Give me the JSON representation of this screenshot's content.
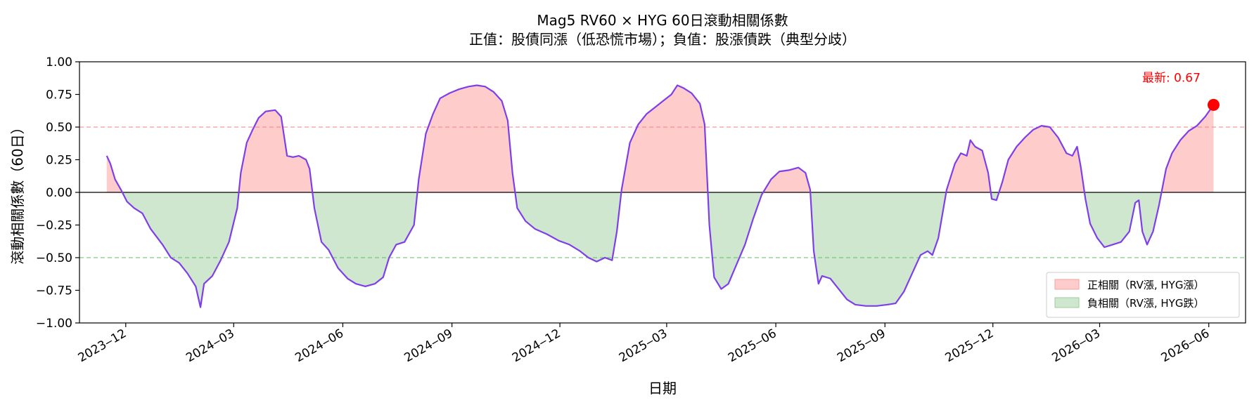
{
  "chart_data": {
    "type": "area",
    "title_line1": "Mag5 RV60 × HYG 60日滾動相關係數",
    "title_line2": "正值：股債同漲（低恐慌市場）；負值：股漲債跌（典型分歧）",
    "xlabel": "日期",
    "ylabel": "滾動相關係數（60日）",
    "ylim": [
      -1.0,
      1.0
    ],
    "y_ticks": [
      -1.0,
      -0.75,
      -0.5,
      -0.25,
      0.0,
      0.25,
      0.5,
      0.75,
      1.0
    ],
    "y_tick_labels": [
      "−1.00",
      "−0.75",
      "−0.50",
      "−0.25",
      "0.00",
      "0.25",
      "0.50",
      "0.75",
      "1.00"
    ],
    "xlim": [
      "2023-10-23",
      "2026-07-02"
    ],
    "x_ticks": [
      "2023-12-01",
      "2024-03-01",
      "2024-06-01",
      "2024-09-01",
      "2024-12-01",
      "2025-03-01",
      "2025-06-01",
      "2025-09-01",
      "2025-12-01",
      "2026-03-01",
      "2026-06-01"
    ],
    "x_tick_labels": [
      "2023‒12",
      "2024‒03",
      "2024‒06",
      "2024‒09",
      "2024‒12",
      "2025‒03",
      "2025‒06",
      "2025‒09",
      "2025‒12",
      "2026‒03",
      "2026‒06"
    ],
    "reference_lines": [
      {
        "y": 0.5,
        "color": "#f08080",
        "style": "dashed"
      },
      {
        "y": -0.5,
        "color": "#66bb66",
        "style": "dashed"
      },
      {
        "y": 0.0,
        "color": "#000000",
        "style": "solid"
      }
    ],
    "legend": {
      "placement": "lower-right",
      "entries": [
        {
          "label": "正相關（RV漲, HYG漲）",
          "color": "#ffcccc",
          "edge": "#f4a0a0"
        },
        {
          "label": "負相關（RV漲, HYG跌）",
          "color": "#cfe6cf",
          "edge": "#9ccc9c"
        }
      ]
    },
    "series": [
      {
        "color": "#7f3fe8",
        "positive_fill": "#ffcccc",
        "negative_fill": "#cfe6cf",
        "points": [
          [
            "2023-11-15",
            0.28
          ],
          [
            "2023-11-18",
            0.22
          ],
          [
            "2023-11-22",
            0.1
          ],
          [
            "2023-11-27",
            0.02
          ],
          [
            "2023-12-02",
            -0.07
          ],
          [
            "2023-12-08",
            -0.12
          ],
          [
            "2023-12-15",
            -0.16
          ],
          [
            "2023-12-22",
            -0.28
          ],
          [
            "2024-01-01",
            -0.4
          ],
          [
            "2024-01-08",
            -0.5
          ],
          [
            "2024-01-15",
            -0.54
          ],
          [
            "2024-01-22",
            -0.62
          ],
          [
            "2024-01-29",
            -0.72
          ],
          [
            "2024-02-02",
            -0.88
          ],
          [
            "2024-02-05",
            -0.7
          ],
          [
            "2024-02-12",
            -0.64
          ],
          [
            "2024-02-19",
            -0.52
          ],
          [
            "2024-02-26",
            -0.38
          ],
          [
            "2024-03-04",
            -0.12
          ],
          [
            "2024-03-07",
            0.15
          ],
          [
            "2024-03-12",
            0.38
          ],
          [
            "2024-03-17",
            0.48
          ],
          [
            "2024-03-22",
            0.57
          ],
          [
            "2024-03-28",
            0.62
          ],
          [
            "2024-04-05",
            0.63
          ],
          [
            "2024-04-10",
            0.58
          ],
          [
            "2024-04-15",
            0.28
          ],
          [
            "2024-04-20",
            0.27
          ],
          [
            "2024-04-25",
            0.28
          ],
          [
            "2024-05-01",
            0.25
          ],
          [
            "2024-05-04",
            0.18
          ],
          [
            "2024-05-08",
            -0.12
          ],
          [
            "2024-05-14",
            -0.38
          ],
          [
            "2024-05-20",
            -0.44
          ],
          [
            "2024-05-28",
            -0.58
          ],
          [
            "2024-06-05",
            -0.66
          ],
          [
            "2024-06-12",
            -0.7
          ],
          [
            "2024-06-20",
            -0.72
          ],
          [
            "2024-06-28",
            -0.7
          ],
          [
            "2024-07-05",
            -0.65
          ],
          [
            "2024-07-10",
            -0.5
          ],
          [
            "2024-07-16",
            -0.4
          ],
          [
            "2024-07-23",
            -0.38
          ],
          [
            "2024-07-31",
            -0.25
          ],
          [
            "2024-08-04",
            0.1
          ],
          [
            "2024-08-10",
            0.45
          ],
          [
            "2024-08-16",
            0.6
          ],
          [
            "2024-08-22",
            0.72
          ],
          [
            "2024-08-30",
            0.76
          ],
          [
            "2024-09-07",
            0.79
          ],
          [
            "2024-09-15",
            0.81
          ],
          [
            "2024-09-22",
            0.82
          ],
          [
            "2024-09-29",
            0.81
          ],
          [
            "2024-10-06",
            0.77
          ],
          [
            "2024-10-13",
            0.7
          ],
          [
            "2024-10-18",
            0.55
          ],
          [
            "2024-10-22",
            0.15
          ],
          [
            "2024-10-26",
            -0.12
          ],
          [
            "2024-11-02",
            -0.22
          ],
          [
            "2024-11-10",
            -0.28
          ],
          [
            "2024-11-20",
            -0.32
          ],
          [
            "2024-11-30",
            -0.37
          ],
          [
            "2024-12-09",
            -0.4
          ],
          [
            "2024-12-18",
            -0.45
          ],
          [
            "2024-12-25",
            -0.5
          ],
          [
            "2025-01-01",
            -0.53
          ],
          [
            "2025-01-08",
            -0.5
          ],
          [
            "2025-01-14",
            -0.52
          ],
          [
            "2025-01-18",
            -0.3
          ],
          [
            "2025-01-22",
            0.02
          ],
          [
            "2025-01-29",
            0.38
          ],
          [
            "2025-02-05",
            0.52
          ],
          [
            "2025-02-12",
            0.6
          ],
          [
            "2025-02-19",
            0.65
          ],
          [
            "2025-02-26",
            0.7
          ],
          [
            "2025-03-05",
            0.75
          ],
          [
            "2025-03-10",
            0.82
          ],
          [
            "2025-03-15",
            0.8
          ],
          [
            "2025-03-22",
            0.76
          ],
          [
            "2025-03-29",
            0.68
          ],
          [
            "2025-04-02",
            0.52
          ],
          [
            "2025-04-06",
            -0.25
          ],
          [
            "2025-04-10",
            -0.65
          ],
          [
            "2025-04-16",
            -0.74
          ],
          [
            "2025-04-22",
            -0.7
          ],
          [
            "2025-04-29",
            -0.55
          ],
          [
            "2025-05-06",
            -0.4
          ],
          [
            "2025-05-13",
            -0.2
          ],
          [
            "2025-05-20",
            -0.02
          ],
          [
            "2025-05-28",
            0.1
          ],
          [
            "2025-06-04",
            0.16
          ],
          [
            "2025-06-12",
            0.17
          ],
          [
            "2025-06-20",
            0.19
          ],
          [
            "2025-06-26",
            0.15
          ],
          [
            "2025-06-30",
            0.02
          ],
          [
            "2025-07-03",
            -0.45
          ],
          [
            "2025-07-07",
            -0.7
          ],
          [
            "2025-07-10",
            -0.64
          ],
          [
            "2025-07-17",
            -0.66
          ],
          [
            "2025-07-24",
            -0.74
          ],
          [
            "2025-07-31",
            -0.82
          ],
          [
            "2025-08-07",
            -0.86
          ],
          [
            "2025-08-16",
            -0.87
          ],
          [
            "2025-08-25",
            -0.87
          ],
          [
            "2025-09-03",
            -0.86
          ],
          [
            "2025-09-10",
            -0.85
          ],
          [
            "2025-09-17",
            -0.76
          ],
          [
            "2025-09-24",
            -0.62
          ],
          [
            "2025-10-01",
            -0.48
          ],
          [
            "2025-10-07",
            -0.45
          ],
          [
            "2025-10-11",
            -0.48
          ],
          [
            "2025-10-16",
            -0.35
          ],
          [
            "2025-10-23",
            0.02
          ],
          [
            "2025-10-30",
            0.22
          ],
          [
            "2025-11-04",
            0.3
          ],
          [
            "2025-11-09",
            0.28
          ],
          [
            "2025-11-12",
            0.4
          ],
          [
            "2025-11-16",
            0.35
          ],
          [
            "2025-11-22",
            0.32
          ],
          [
            "2025-11-27",
            0.15
          ],
          [
            "2025-11-30",
            -0.05
          ],
          [
            "2025-12-04",
            -0.06
          ],
          [
            "2025-12-09",
            0.08
          ],
          [
            "2025-12-14",
            0.25
          ],
          [
            "2025-12-21",
            0.35
          ],
          [
            "2025-12-28",
            0.42
          ],
          [
            "2026-01-04",
            0.48
          ],
          [
            "2026-01-11",
            0.51
          ],
          [
            "2026-01-18",
            0.5
          ],
          [
            "2026-01-25",
            0.42
          ],
          [
            "2026-02-01",
            0.3
          ],
          [
            "2026-02-06",
            0.28
          ],
          [
            "2026-02-10",
            0.35
          ],
          [
            "2026-02-13",
            0.2
          ],
          [
            "2026-02-17",
            -0.05
          ],
          [
            "2026-02-21",
            -0.24
          ],
          [
            "2026-02-27",
            -0.35
          ],
          [
            "2026-03-05",
            -0.42
          ],
          [
            "2026-03-12",
            -0.4
          ],
          [
            "2026-03-19",
            -0.38
          ],
          [
            "2026-03-26",
            -0.3
          ],
          [
            "2026-03-31",
            -0.08
          ],
          [
            "2026-04-03",
            -0.06
          ],
          [
            "2026-04-06",
            -0.3
          ],
          [
            "2026-04-10",
            -0.4
          ],
          [
            "2026-04-15",
            -0.3
          ],
          [
            "2026-04-20",
            -0.1
          ],
          [
            "2026-04-26",
            0.18
          ],
          [
            "2026-05-01",
            0.3
          ],
          [
            "2026-05-08",
            0.4
          ],
          [
            "2026-05-15",
            0.47
          ],
          [
            "2026-05-22",
            0.51
          ],
          [
            "2026-05-29",
            0.58
          ],
          [
            "2026-06-05",
            0.67
          ]
        ]
      }
    ],
    "latest_point": {
      "x": "2026-06-05",
      "y": 0.67,
      "color": "#ff0000"
    },
    "annotation": "最新: 0.67"
  }
}
